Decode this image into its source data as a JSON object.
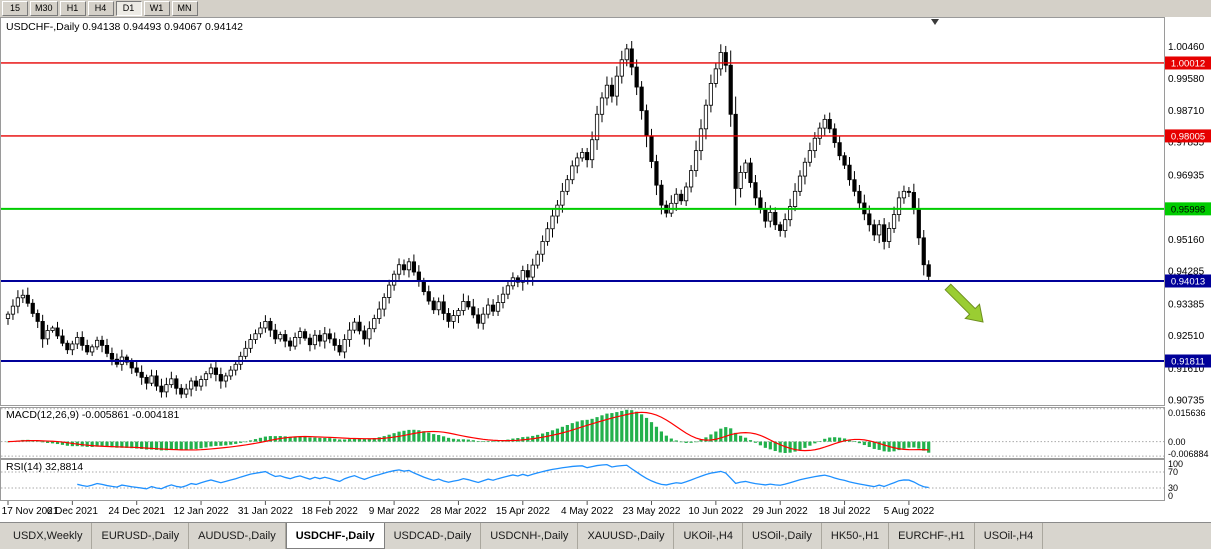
{
  "toolbar": {
    "timeframes": [
      {
        "label": "15",
        "active": false
      },
      {
        "label": "M30",
        "active": false
      },
      {
        "label": "H1",
        "active": false
      },
      {
        "label": "H4",
        "active": false
      },
      {
        "label": "D1",
        "active": true
      },
      {
        "label": "W1",
        "active": false
      },
      {
        "label": "MN",
        "active": false
      }
    ]
  },
  "chart": {
    "header": "USDCHF-,Daily 0.94138 0.94493 0.94067 0.94142",
    "macd_label": "MACD(12,26,9) -0.005861 -0.004181",
    "rsi_label": "RSI(14) 32,8814"
  },
  "chart_data": {
    "type": "candlestick",
    "symbol": "USDCHF-",
    "timeframe": "Daily",
    "ohlc_display": {
      "open": "0.94138",
      "high": "0.94493",
      "low": "0.94067",
      "close": "0.94142"
    },
    "x_axis": {
      "bars_per_label": 13,
      "labels": [
        "17 Nov 2021",
        "6 Dec 2021",
        "24 Dec 2021",
        "12 Jan 2022",
        "31 Jan 2022",
        "18 Feb 2022",
        "9 Mar 2022",
        "28 Mar 2022",
        "15 Apr 2022",
        "4 May 2022",
        "23 May 2022",
        "10 Jun 2022",
        "29 Jun 2022",
        "18 Jul 2022",
        "5 Aug 2022"
      ]
    },
    "y_axis": {
      "labels": [
        "1.00460",
        "0.99580",
        "0.98710",
        "0.97835",
        "0.96935",
        "0.96060",
        "0.95160",
        "0.94285",
        "0.93385",
        "0.92510",
        "0.91610",
        "0.90735"
      ]
    },
    "closes": [
      0.931,
      0.9332,
      0.9355,
      0.9362,
      0.934,
      0.9312,
      0.929,
      0.9242,
      0.9265,
      0.9272,
      0.925,
      0.923,
      0.9212,
      0.9228,
      0.9246,
      0.9224,
      0.9206,
      0.922,
      0.9238,
      0.9224,
      0.9202,
      0.9186,
      0.9172,
      0.9192,
      0.9178,
      0.9162,
      0.915,
      0.9136,
      0.912,
      0.914,
      0.9112,
      0.9096,
      0.9116,
      0.9132,
      0.9106,
      0.909,
      0.9104,
      0.9126,
      0.9112,
      0.913,
      0.9146,
      0.9162,
      0.9144,
      0.9126,
      0.914,
      0.9156,
      0.9172,
      0.9194,
      0.9216,
      0.924,
      0.9256,
      0.9272,
      0.929,
      0.9266,
      0.9242,
      0.9254,
      0.9236,
      0.9222,
      0.9246,
      0.9262,
      0.9244,
      0.9226,
      0.9252,
      0.9236,
      0.9256,
      0.9242,
      0.9224,
      0.9206,
      0.924,
      0.9266,
      0.9288,
      0.9264,
      0.9242,
      0.927,
      0.9298,
      0.9324,
      0.9356,
      0.939,
      0.942,
      0.9446,
      0.9432,
      0.9454,
      0.9426,
      0.94,
      0.9372,
      0.9346,
      0.9322,
      0.9344,
      0.9312,
      0.929,
      0.9306,
      0.932,
      0.9345,
      0.933,
      0.9308,
      0.9285,
      0.931,
      0.9335,
      0.9318,
      0.9342,
      0.9365,
      0.9388,
      0.941,
      0.9398,
      0.943,
      0.9412,
      0.9445,
      0.9475,
      0.951,
      0.9545,
      0.958,
      0.961,
      0.9648,
      0.968,
      0.9718,
      0.974,
      0.9755,
      0.9735,
      0.979,
      0.986,
      0.9905,
      0.994,
      0.991,
      0.9965,
      1.001,
      1.004,
      0.999,
      0.9935,
      0.987,
      0.98,
      0.973,
      0.9665,
      0.961,
      0.9588,
      0.9615,
      0.964,
      0.9622,
      0.966,
      0.9705,
      0.976,
      0.982,
      0.9885,
      0.9945,
      0.9985,
      1.003,
      0.9995,
      0.986,
      0.9656,
      0.97,
      0.9726,
      0.9672,
      0.963,
      0.96,
      0.9566,
      0.959,
      0.9556,
      0.954,
      0.957,
      0.9606,
      0.9648,
      0.969,
      0.9728,
      0.976,
      0.9794,
      0.9822,
      0.9846,
      0.982,
      0.9782,
      0.9746,
      0.972,
      0.968,
      0.9648,
      0.9616,
      0.9586,
      0.9556,
      0.9528,
      0.9556,
      0.951,
      0.9546,
      0.9584,
      0.963,
      0.9648,
      0.9645,
      0.96,
      0.952,
      0.9446,
      0.9414
    ],
    "candle_colors": {
      "up": "#FFFFFF",
      "down": "#000000",
      "outline": "#000000"
    },
    "hlines": [
      {
        "price": 1.00012,
        "label": "1.00012",
        "color": "#E60000",
        "text_color": "#FFFFFF",
        "width": 1.4
      },
      {
        "price": 0.98005,
        "label": "0.98005",
        "color": "#E60000",
        "text_color": "#FFFFFF",
        "width": 1.4
      },
      {
        "price": 0.95998,
        "label": "0.95998",
        "color": "#00CC00",
        "text_color": "#000000",
        "width": 2
      },
      {
        "price": 0.94013,
        "label": "0.94013",
        "color": "#000099",
        "text_color": "#FFFFFF",
        "width": 2
      },
      {
        "price": 0.91811,
        "label": "0.91811",
        "color": "#000099",
        "text_color": "#FFFFFF",
        "width": 2
      }
    ],
    "indicators": {
      "macd": {
        "name": "MACD",
        "params": "12,26,9",
        "value_main": "-0.005861",
        "value_signal": "-0.004181",
        "axis_labels": [
          "0.015636",
          "0.00",
          "-0.006884"
        ],
        "histogram_color": "#22B14C",
        "signal_color": "#FF0000"
      },
      "rsi": {
        "name": "RSI",
        "period": "14",
        "value": "32,8814",
        "levels": [
          70,
          30
        ],
        "axis_labels": [
          "100",
          "70",
          "30",
          "0"
        ],
        "line_color": "#1E90FF"
      }
    },
    "annotations": [
      {
        "type": "arrow-down-right",
        "color": "#9ACD32"
      }
    ]
  },
  "tabs": [
    {
      "label": "USDX,Weekly",
      "active": false
    },
    {
      "label": "EURUSD-,Daily",
      "active": false
    },
    {
      "label": "AUDUSD-,Daily",
      "active": false
    },
    {
      "label": "USDCHF-,Daily",
      "active": true
    },
    {
      "label": "USDCAD-,Daily",
      "active": false
    },
    {
      "label": "USDCNH-,Daily",
      "active": false
    },
    {
      "label": "XAUUSD-,Daily",
      "active": false
    },
    {
      "label": "UKOil-,H4",
      "active": false
    },
    {
      "label": "USOil-,Daily",
      "active": false
    },
    {
      "label": "HK50-,H1",
      "active": false
    },
    {
      "label": "EURCHF-,H1",
      "active": false
    },
    {
      "label": "USOil-,H4",
      "active": false
    }
  ]
}
